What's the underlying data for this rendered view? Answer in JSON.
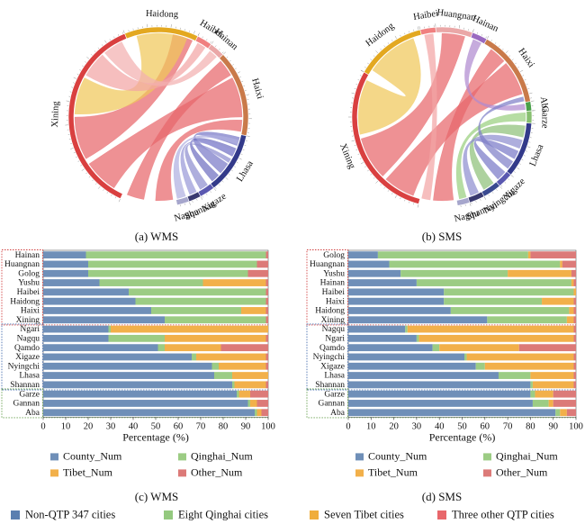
{
  "captions": {
    "a": "(a) WMS",
    "b": "(b) SMS",
    "c": "(c) WMS",
    "d": "(d) SMS"
  },
  "colors": {
    "non_qtp": "#5b7fb0",
    "qinghai": "#94c97f",
    "tibet": "#f0ad3c",
    "other": "#e8676b",
    "county_bar": "#6f8fb8",
    "qinghai_bar": "#9ccc84",
    "tibet_bar": "#f2b04a",
    "other_bar": "#dc7a78"
  },
  "bottom_legend": [
    {
      "label": "Non-QTP 347 cities",
      "color": "#5b7fb0"
    },
    {
      "label": "Eight Qinghai cities",
      "color": "#94c97f"
    },
    {
      "label": "Seven Tibet cities",
      "color": "#f0ad3c"
    },
    {
      "label": "Three other QTP cities",
      "color": "#e8676b"
    }
  ],
  "chart_data": [
    {
      "id": "a",
      "type": "chord",
      "nodes": [
        {
          "label": "Xining",
          "group": "qinghai",
          "color": "#d94040",
          "start": 205,
          "end": 338
        },
        {
          "label": "Haidong",
          "group": "qinghai",
          "color": "#e3a820",
          "start": 338,
          "end": 26
        },
        {
          "label": "Haibei",
          "group": "qinghai",
          "color": "#f08080",
          "start": 26,
          "end": 36
        },
        {
          "label": "Hainan",
          "group": "qinghai",
          "color": "#eaa7a7",
          "start": 36,
          "end": 46
        },
        {
          "label": "Haixi",
          "group": "qinghai",
          "color": "#c97a4a",
          "start": 46,
          "end": 102
        },
        {
          "label": "Lhasa",
          "group": "tibet",
          "color": "#333a8a",
          "start": 102,
          "end": 142
        },
        {
          "label": "Xigaze",
          "group": "tibet",
          "color": "#5a58b0",
          "start": 142,
          "end": 152
        },
        {
          "label": "Shannan",
          "group": "tibet",
          "color": "#393970",
          "start": 152,
          "end": 160
        },
        {
          "label": "Nagqu",
          "group": "tibet",
          "color": "#a6a6cc",
          "start": 160,
          "end": 168
        }
      ],
      "links": [
        {
          "from": [
            212,
            236
          ],
          "to": [
            62,
            90
          ],
          "color": "#e8676b"
        },
        {
          "from": [
            240,
            270
          ],
          "to": [
            10,
            24
          ],
          "color": "#e8676b"
        },
        {
          "from": [
            272,
            298
          ],
          "to": [
            345,
            20
          ],
          "color": "#f0c85a"
        },
        {
          "from": [
            300,
            318
          ],
          "to": [
            28,
            34
          ],
          "color": "#f3a5a5"
        },
        {
          "from": [
            320,
            334
          ],
          "to": [
            38,
            44
          ],
          "color": "#f3b0b0"
        },
        {
          "from": [
            190,
            202
          ],
          "to": [
            48,
            60
          ],
          "color": "#e8676b"
        },
        {
          "from": [
            104,
            110
          ],
          "to": [
            124,
            132
          ],
          "color": "#7a7ac8"
        },
        {
          "from": [
            112,
            118
          ],
          "to": [
            134,
            140
          ],
          "color": "#6f6fc0"
        },
        {
          "from": [
            144,
            150
          ],
          "to": [
            120,
            123
          ],
          "color": "#8f8fd0"
        },
        {
          "from": [
            153,
            158
          ],
          "to": [
            114,
            117
          ],
          "color": "#9a9ad8"
        },
        {
          "from": [
            161,
            167
          ],
          "to": [
            106,
            109
          ],
          "color": "#b0b0e0"
        },
        {
          "from": [
            170,
            182
          ],
          "to": [
            92,
            100
          ],
          "color": "#e8676b"
        }
      ]
    },
    {
      "id": "b",
      "type": "chord",
      "nodes": [
        {
          "label": "Xining",
          "group": "qinghai",
          "color": "#d94040",
          "start": 195,
          "end": 300
        },
        {
          "label": "Haidong",
          "group": "qinghai",
          "color": "#e3a820",
          "start": 300,
          "end": 346
        },
        {
          "label": "Haibei",
          "group": "qinghai",
          "color": "#f08080",
          "start": 346,
          "end": 356
        },
        {
          "label": "Huangnan",
          "group": "qinghai",
          "color": "#eaa7a7",
          "start": 356,
          "end": 20
        },
        {
          "label": "Hainan",
          "group": "qinghai",
          "color": "#9a6ac0",
          "start": 20,
          "end": 30
        },
        {
          "label": "Haixi",
          "group": "qinghai",
          "color": "#c97a4a",
          "start": 30,
          "end": 80
        },
        {
          "label": "Aba",
          "group": "other",
          "color": "#4aa04a",
          "start": 80,
          "end": 86
        },
        {
          "label": "Garze",
          "group": "other",
          "color": "#88c070",
          "start": 86,
          "end": 94
        },
        {
          "label": "Lhasa",
          "group": "tibet",
          "color": "#333a8a",
          "start": 94,
          "end": 130
        },
        {
          "label": "Xigaze",
          "group": "tibet",
          "color": "#5a58b0",
          "start": 130,
          "end": 140
        },
        {
          "label": "Nyingchi",
          "group": "tibet",
          "color": "#3a4a90",
          "start": 140,
          "end": 152
        },
        {
          "label": "Shannan",
          "group": "tibet",
          "color": "#393970",
          "start": 152,
          "end": 162
        },
        {
          "label": "Nagqu",
          "group": "tibet",
          "color": "#a6a6cc",
          "start": 162,
          "end": 170
        }
      ],
      "links": [
        {
          "from": [
            200,
            222
          ],
          "to": [
            50,
            74
          ],
          "color": "#e8676b"
        },
        {
          "from": [
            225,
            255
          ],
          "to": [
            0,
            16
          ],
          "color": "#e8676b"
        },
        {
          "from": [
            258,
            296
          ],
          "to": [
            304,
            340
          ],
          "color": "#f0c85a"
        },
        {
          "from": [
            172,
            186
          ],
          "to": [
            36,
            48
          ],
          "color": "#e8676b"
        },
        {
          "from": [
            188,
            194
          ],
          "to": [
            348,
            354
          ],
          "color": "#f3a5a5"
        },
        {
          "from": [
            81,
            85
          ],
          "to": [
            22,
            28
          ],
          "color": "#b08ad0"
        },
        {
          "from": [
            96,
            104
          ],
          "to": [
            142,
            150
          ],
          "color": "#8fc07a"
        },
        {
          "from": [
            106,
            112
          ],
          "to": [
            154,
            160
          ],
          "color": "#8f8fd0"
        },
        {
          "from": [
            114,
            120
          ],
          "to": [
            131,
            138
          ],
          "color": "#7a7ac8"
        },
        {
          "from": [
            87,
            93
          ],
          "to": [
            163,
            168
          ],
          "color": "#9ad080"
        },
        {
          "from": [
            122,
            128
          ],
          "to": [
            76,
            79
          ],
          "color": "#8080c8"
        }
      ]
    },
    {
      "id": "c",
      "type": "bar",
      "orientation": "horizontal",
      "stacked": true,
      "xlabel": "Percentage (%)",
      "xlim": [
        0,
        100
      ],
      "xticks": [
        0,
        10,
        20,
        30,
        40,
        50,
        60,
        70,
        80,
        90,
        100
      ],
      "categories": [
        "Hainan",
        "Huangnan",
        "Golog",
        "Yushu",
        "Haibei",
        "Haidong",
        "Haixi",
        "Xining",
        "Ngari",
        "Nagqu",
        "Qamdo",
        "Xigaze",
        "Nyingchi",
        "Lhasa",
        "Shannan",
        "Garze",
        "Gannan",
        "Aba"
      ],
      "groups": [
        [
          0,
          7
        ],
        [
          8,
          14
        ],
        [
          15,
          17
        ]
      ],
      "series": [
        {
          "name": "County_Num",
          "color": "#6f8fb8",
          "values": [
            19,
            20,
            20,
            25,
            38,
            41,
            48,
            54,
            29,
            29,
            51,
            66,
            75,
            76,
            84,
            86,
            91,
            94
          ]
        },
        {
          "name": "Qinghai_Num",
          "color": "#9ccc84",
          "values": [
            80,
            75,
            71,
            46,
            61,
            58,
            40,
            45,
            1,
            25,
            3,
            2,
            3,
            8,
            1,
            1,
            1,
            1
          ]
        },
        {
          "name": "Tibet_Num",
          "color": "#f2b04a",
          "values": [
            0,
            0,
            0,
            28,
            0,
            0,
            11,
            0,
            70,
            45,
            25,
            31,
            21,
            16,
            14,
            5,
            3,
            2
          ]
        },
        {
          "name": "Other_Num",
          "color": "#dc7a78",
          "values": [
            1,
            5,
            9,
            1,
            1,
            1,
            1,
            1,
            0,
            1,
            21,
            1,
            1,
            0,
            1,
            8,
            5,
            3
          ]
        }
      ],
      "legend": [
        "County_Num",
        "Qinghai_Num",
        "Tibet_Num",
        "Other_Num"
      ]
    },
    {
      "id": "d",
      "type": "bar",
      "orientation": "horizontal",
      "stacked": true,
      "xlabel": "Percentage (%)",
      "xlim": [
        0,
        100
      ],
      "xticks": [
        0,
        10,
        20,
        30,
        40,
        50,
        60,
        70,
        80,
        90,
        100
      ],
      "categories": [
        "Golog",
        "Huangnan",
        "Yushu",
        "Hainan",
        "Haibei",
        "Haixi",
        "Haidong",
        "Xining",
        "Nagqu",
        "Ngari",
        "Qamdo",
        "Nyingchi",
        "Xigaze",
        "Lhasa",
        "Shannan",
        "Garze",
        "Gannan",
        "Aba"
      ],
      "groups": [
        [
          0,
          7
        ],
        [
          8,
          14
        ],
        [
          15,
          17
        ]
      ],
      "series": [
        {
          "name": "County_Num",
          "color": "#6f8fb8",
          "values": [
            13,
            18,
            23,
            30,
            42,
            42,
            45,
            61,
            25,
            30,
            37,
            51,
            56,
            66,
            80,
            80,
            81,
            91
          ]
        },
        {
          "name": "Qinghai_Num",
          "color": "#9ccc84",
          "values": [
            66,
            75,
            47,
            68,
            57,
            43,
            52,
            35,
            1,
            1,
            3,
            1,
            4,
            14,
            1,
            2,
            7,
            2
          ]
        },
        {
          "name": "Tibet_Num",
          "color": "#f2b04a",
          "values": [
            1,
            1,
            28,
            1,
            1,
            14,
            2,
            3,
            73,
            68,
            35,
            47,
            39,
            19,
            18,
            8,
            2,
            3
          ]
        },
        {
          "name": "Other_Num",
          "color": "#dc7a78",
          "values": [
            20,
            6,
            2,
            1,
            0,
            1,
            1,
            1,
            1,
            1,
            25,
            1,
            1,
            1,
            1,
            10,
            10,
            4
          ]
        }
      ],
      "legend": [
        "County_Num",
        "Qinghai_Num",
        "Tibet_Num",
        "Other_Num"
      ]
    }
  ]
}
